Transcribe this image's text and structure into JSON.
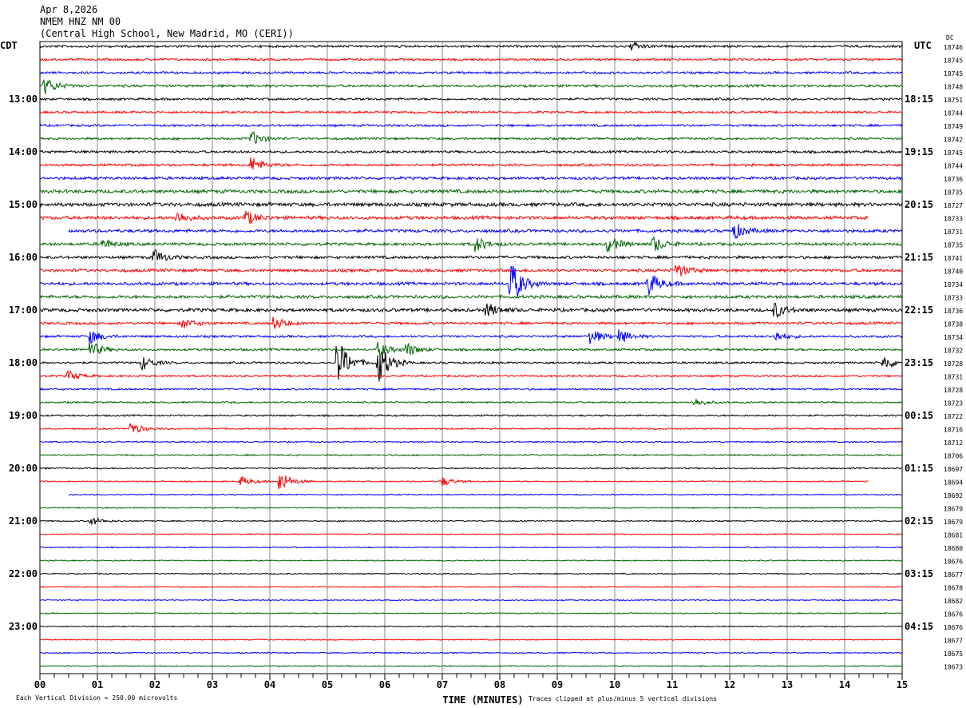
{
  "header": {
    "date": "Apr 8,2026",
    "station": "NMEM HNZ NM 00",
    "location": "(Central High School, New Madrid, MO (CERI))"
  },
  "chart_data": {
    "type": "line",
    "title": "NMEM HNZ NM 00 helicorder, Apr 8,2026",
    "xlabel": "TIME (MINUTES)",
    "xlim": [
      0,
      15
    ],
    "x_ticks": [
      "00",
      "01",
      "02",
      "03",
      "04",
      "05",
      "06",
      "07",
      "08",
      "09",
      "10",
      "11",
      "12",
      "13",
      "14",
      "15"
    ],
    "left_axis_title": "CDT",
    "right_axis_title": "UTC",
    "dc_header": "DC",
    "left_time_labels": [
      "13:00",
      "14:00",
      "15:00",
      "16:00",
      "17:00",
      "18:00",
      "19:00",
      "20:00",
      "21:00",
      "22:00",
      "23:00"
    ],
    "right_time_labels": [
      "18:15",
      "19:15",
      "20:15",
      "21:15",
      "22:15",
      "23:15",
      "00:15",
      "01:15",
      "02:15",
      "03:15",
      "04:15"
    ],
    "trace_colors": [
      "#000000",
      "#ff0000",
      "#0000ff",
      "#006400"
    ],
    "dc_offsets": [
      "18746",
      "18745",
      "18745",
      "18748",
      "18751",
      "18744",
      "18749",
      "18742",
      "18745",
      "18744",
      "18736",
      "18735",
      "18727",
      "18733",
      "18731",
      "18735",
      "18741",
      "18740",
      "18734",
      "18733",
      "18736",
      "18738",
      "18734",
      "18732",
      "18728",
      "18731",
      "18728",
      "18723",
      "18722",
      "18716",
      "18712",
      "18706",
      "18697",
      "18694",
      "18692",
      "18679",
      "18679",
      "18681",
      "18680",
      "18676",
      "18677",
      "18678",
      "18682",
      "18676",
      "18676",
      "18677",
      "18675",
      "18673"
    ],
    "noise_level": [
      1.6,
      1.6,
      1.6,
      1.8,
      1.6,
      1.6,
      1.6,
      1.6,
      1.7,
      1.8,
      2.0,
      2.4,
      2.6,
      2.4,
      2.2,
      2.0,
      2.0,
      2.2,
      2.2,
      2.2,
      2.4,
      1.8,
      1.6,
      1.6,
      1.4,
      1.4,
      1.3,
      1.2,
      1.2,
      1.1,
      1.0,
      1.0,
      1.0,
      0.9,
      0.8,
      0.8,
      0.8,
      0.8,
      0.8,
      0.8,
      0.8,
      0.8,
      0.8,
      0.8,
      0.8,
      0.8,
      0.8,
      0.8
    ],
    "events": [
      [
        0,
        10.3,
        5
      ],
      [
        3,
        0.1,
        10
      ],
      [
        7,
        3.7,
        8
      ],
      [
        9,
        3.7,
        9
      ],
      [
        13,
        2.4,
        7
      ],
      [
        13,
        3.6,
        8
      ],
      [
        14,
        12.1,
        9
      ],
      [
        15,
        1.1,
        6
      ],
      [
        15,
        7.6,
        9
      ],
      [
        15,
        9.9,
        10
      ],
      [
        15,
        10.7,
        9
      ],
      [
        16,
        2.0,
        9
      ],
      [
        17,
        11.1,
        8
      ],
      [
        18,
        8.2,
        28
      ],
      [
        18,
        10.6,
        14
      ],
      [
        20,
        7.8,
        8
      ],
      [
        20,
        12.8,
        9
      ],
      [
        21,
        2.5,
        6
      ],
      [
        21,
        4.1,
        7
      ],
      [
        22,
        0.9,
        8
      ],
      [
        22,
        9.6,
        9
      ],
      [
        22,
        10.1,
        8
      ],
      [
        22,
        12.8,
        6
      ],
      [
        23,
        0.9,
        9
      ],
      [
        23,
        5.9,
        9
      ],
      [
        23,
        6.4,
        8
      ],
      [
        24,
        1.8,
        8
      ],
      [
        24,
        5.2,
        28
      ],
      [
        24,
        5.9,
        26
      ],
      [
        24,
        14.7,
        8
      ],
      [
        25,
        0.5,
        6
      ],
      [
        27,
        11.4,
        5
      ],
      [
        29,
        1.6,
        7
      ],
      [
        33,
        3.5,
        6
      ],
      [
        33,
        4.2,
        12
      ],
      [
        36,
        0.9,
        5
      ],
      [
        33,
        7.0,
        6
      ]
    ],
    "short_traces": {
      "13": [
        0,
        14.4
      ],
      "14": [
        0.5,
        15
      ],
      "33": [
        0,
        14.4
      ],
      "34": [
        0.5,
        15
      ]
    },
    "footer_scale": "Each Vertical Division =  250.00 microvolts",
    "footer_clip": "Traces clipped at plus/minus 5 vertical divisions"
  }
}
